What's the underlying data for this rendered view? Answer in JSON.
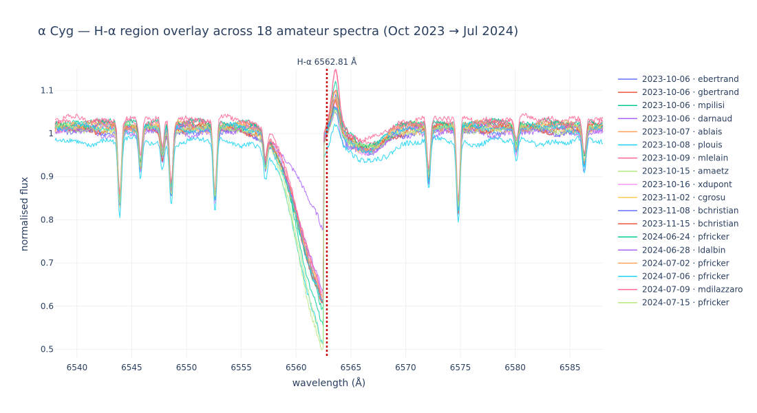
{
  "chart_data": {
    "type": "line",
    "title": "α Cyg — H-α region overlay across 18 amateur spectra (Oct 2023 → Jul 2024)",
    "xlabel": "wavelength (Å)",
    "ylabel": "normalised flux",
    "xlim": [
      6538,
      6588
    ],
    "ylim": [
      0.48,
      1.15
    ],
    "xticks": [
      6540,
      6545,
      6550,
      6555,
      6560,
      6565,
      6570,
      6575,
      6580,
      6585
    ],
    "yticks": [
      0.5,
      0.6,
      0.7,
      0.8,
      0.9,
      1,
      1.1
    ],
    "grid": true,
    "legend_position": "right",
    "annotation": {
      "text": "H-α 6562.81 Å",
      "x": 6562.81,
      "color": "#cc0000"
    },
    "series": [
      {
        "name": "2023-10-06 · ebertrand",
        "color": "#636efa",
        "core": 0.63,
        "peak": 1.06,
        "offset": 0.0
      },
      {
        "name": "2023-10-06 · gbertrand",
        "color": "#ef553b",
        "core": 0.62,
        "peak": 1.07,
        "offset": 0.005
      },
      {
        "name": "2023-10-06 · mpilisi",
        "color": "#00cc96",
        "core": 0.6,
        "peak": 1.08,
        "offset": 0.01
      },
      {
        "name": "2023-10-06 · darnaud",
        "color": "#ab63fa",
        "core": 0.81,
        "peak": 1.04,
        "offset": -0.01
      },
      {
        "name": "2023-10-07 · ablais",
        "color": "#ffa15a",
        "core": 0.63,
        "peak": 1.06,
        "offset": 0.0
      },
      {
        "name": "2023-10-08 · plouis",
        "color": "#19d3f3",
        "core": 0.57,
        "peak": 1.03,
        "offset": -0.03
      },
      {
        "name": "2023-10-09 · mlelain",
        "color": "#ff6692",
        "core": 0.64,
        "peak": 1.1,
        "offset": 0.015
      },
      {
        "name": "2023-10-15 · amaetz",
        "color": "#b6e880",
        "core": 0.51,
        "peak": 1.04,
        "offset": 0.005
      },
      {
        "name": "2023-10-16 · xdupont",
        "color": "#ff97ff",
        "core": 0.64,
        "peak": 1.05,
        "offset": 0.0
      },
      {
        "name": "2023-11-02 · cgrosu",
        "color": "#fecb52",
        "core": 0.63,
        "peak": 1.06,
        "offset": 0.0
      },
      {
        "name": "2023-11-08 · bchristian",
        "color": "#636efa",
        "core": 0.64,
        "peak": 1.05,
        "offset": -0.005
      },
      {
        "name": "2023-11-15 · bchristian",
        "color": "#ef553b",
        "core": 0.63,
        "peak": 1.06,
        "offset": 0.0
      },
      {
        "name": "2024-06-24 · pfricker",
        "color": "#00cc96",
        "core": 0.57,
        "peak": 1.03,
        "offset": 0.01
      },
      {
        "name": "2024-06-28 · ldalbin",
        "color": "#ab63fa",
        "core": 0.66,
        "peak": 1.03,
        "offset": 0.0
      },
      {
        "name": "2024-07-02 · pfricker",
        "color": "#ffa15a",
        "core": 0.63,
        "peak": 1.06,
        "offset": 0.005
      },
      {
        "name": "2024-07-06 · pfricker",
        "color": "#19d3f3",
        "core": 0.62,
        "peak": 1.04,
        "offset": 0.0
      },
      {
        "name": "2024-07-09 · mdilazzaro",
        "color": "#ff6692",
        "core": 0.62,
        "peak": 1.11,
        "offset": 0.02
      },
      {
        "name": "2024-07-15 · pfricker",
        "color": "#b6e880",
        "core": 0.54,
        "peak": 1.03,
        "offset": 0.0
      }
    ],
    "absorption_lines": [
      {
        "x": 6543.9,
        "depth": 0.15
      },
      {
        "x": 6545.8,
        "depth": 0.08
      },
      {
        "x": 6547.8,
        "depth": 0.06
      },
      {
        "x": 6548.6,
        "depth": 0.14
      },
      {
        "x": 6552.6,
        "depth": 0.16
      },
      {
        "x": 6557.2,
        "depth": 0.07
      },
      {
        "x": 6572.1,
        "depth": 0.14
      },
      {
        "x": 6574.8,
        "depth": 0.17
      },
      {
        "x": 6580.1,
        "depth": 0.06
      },
      {
        "x": 6586.3,
        "depth": 0.09
      }
    ]
  }
}
